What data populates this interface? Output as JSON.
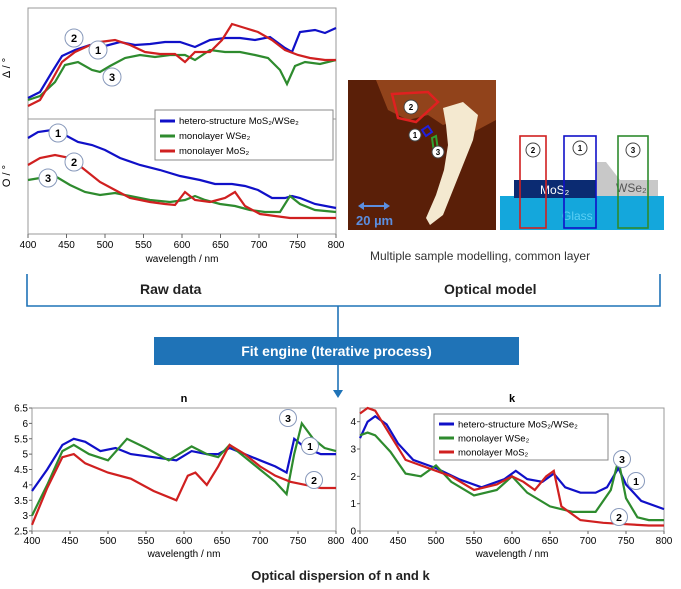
{
  "raw_data_panel": {
    "y_label_top": "Δ / °",
    "y_label_bottom": "Ο / °",
    "x_label": "wavelength / nm",
    "x_ticks": [
      "400",
      "450",
      "500",
      "550",
      "600",
      "650",
      "700",
      "750",
      "800"
    ],
    "legend": [
      {
        "name": "hetero-structure MoS₂/WSe₂",
        "color": "#1010c8"
      },
      {
        "name": "monolayer WSe₂",
        "color": "#2e8b2e"
      },
      {
        "name": "monolayer MoS₂",
        "color": "#d02020"
      }
    ],
    "markers_top": [
      "2",
      "1",
      "3"
    ],
    "markers_bottom": [
      "1",
      "2",
      "3"
    ]
  },
  "microscope": {
    "scale_label": "20 µm",
    "markers": [
      "2",
      "1",
      "3"
    ]
  },
  "model_diagram": {
    "mos2_label": "MoS₂",
    "wse2_label": "WSe₂",
    "glass_label": "Glass",
    "markers": [
      "2",
      "1",
      "3"
    ]
  },
  "captions": {
    "model_caption": "Multiple sample modelling, common layer",
    "raw_data": "Raw data",
    "optical_model": "Optical model",
    "fit_engine": "Fit engine (Iterative process)",
    "bottom_caption": "Optical dispersion of n and k"
  },
  "chart_data": [
    {
      "type": "line",
      "title": "n",
      "xlabel": "wavelength / nm",
      "ylabel": "",
      "xlim": [
        400,
        800
      ],
      "ylim": [
        2.5,
        6.5
      ],
      "x_ticks": [
        400,
        450,
        500,
        550,
        600,
        650,
        700,
        750,
        800
      ],
      "y_ticks": [
        2.5,
        3.0,
        3.5,
        4.0,
        4.5,
        5.0,
        5.5,
        6.0,
        6.5
      ],
      "series": [
        {
          "name": "hetero-structure MoS₂/WSe₂",
          "color": "#1010c8",
          "x": [
            400,
            420,
            440,
            455,
            470,
            490,
            510,
            530,
            560,
            590,
            610,
            630,
            645,
            660,
            680,
            700,
            720,
            735,
            745,
            760,
            780,
            800
          ],
          "y": [
            3.8,
            4.5,
            5.3,
            5.5,
            5.4,
            5.1,
            5.2,
            5.0,
            4.9,
            4.8,
            5.1,
            5.0,
            5.0,
            5.2,
            5.0,
            4.8,
            4.6,
            4.4,
            5.5,
            5.2,
            5.0,
            5.0
          ]
        },
        {
          "name": "monolayer WSe₂",
          "color": "#2e8b2e",
          "x": [
            400,
            420,
            440,
            455,
            475,
            500,
            525,
            550,
            580,
            610,
            630,
            645,
            660,
            680,
            700,
            720,
            735,
            745,
            755,
            770,
            785,
            800
          ],
          "y": [
            3.0,
            4.0,
            5.1,
            5.3,
            5.0,
            4.8,
            5.5,
            5.2,
            4.8,
            5.25,
            5.0,
            4.9,
            5.3,
            4.9,
            4.5,
            4.1,
            3.7,
            5.0,
            6.0,
            5.5,
            5.2,
            5.1
          ]
        },
        {
          "name": "monolayer MoS₂",
          "color": "#d02020",
          "x": [
            400,
            420,
            440,
            455,
            470,
            500,
            530,
            560,
            590,
            605,
            615,
            630,
            645,
            660,
            680,
            700,
            720,
            740,
            760,
            780,
            800
          ],
          "y": [
            2.7,
            3.9,
            4.9,
            5.0,
            4.7,
            4.4,
            4.2,
            3.8,
            3.5,
            4.3,
            4.4,
            4.0,
            4.6,
            5.3,
            5.0,
            4.6,
            4.3,
            4.1,
            4.0,
            3.9,
            3.9
          ]
        }
      ],
      "markers": [
        "3",
        "1",
        "2"
      ]
    },
    {
      "type": "line",
      "title": "k",
      "xlabel": "wavelength / nm",
      "ylabel": "",
      "xlim": [
        400,
        800
      ],
      "ylim": [
        0,
        4.5
      ],
      "x_ticks": [
        400,
        450,
        500,
        550,
        600,
        650,
        700,
        750,
        800
      ],
      "y_ticks": [
        0,
        1,
        2,
        3,
        4
      ],
      "series": [
        {
          "name": "hetero-structure MoS₂/WSe₂",
          "color": "#1010c8",
          "x": [
            400,
            410,
            420,
            435,
            450,
            470,
            500,
            530,
            560,
            590,
            605,
            620,
            640,
            655,
            670,
            690,
            710,
            725,
            740,
            750,
            770,
            800
          ],
          "y": [
            3.4,
            4.0,
            4.2,
            3.9,
            3.2,
            2.6,
            2.3,
            1.9,
            1.6,
            1.9,
            2.2,
            1.9,
            1.8,
            2.1,
            1.6,
            1.4,
            1.4,
            1.6,
            2.3,
            1.7,
            1.1,
            0.8
          ]
        },
        {
          "name": "monolayer WSe₂",
          "color": "#2e8b2e",
          "x": [
            400,
            410,
            420,
            440,
            460,
            480,
            500,
            520,
            550,
            580,
            600,
            620,
            650,
            680,
            710,
            730,
            740,
            750,
            765,
            780,
            800
          ],
          "y": [
            3.5,
            3.6,
            3.5,
            2.9,
            2.1,
            2.0,
            2.4,
            1.8,
            1.3,
            1.5,
            2.0,
            1.4,
            0.9,
            0.7,
            0.7,
            1.5,
            2.6,
            1.2,
            0.5,
            0.4,
            0.4
          ]
        },
        {
          "name": "monolayer MoS₂",
          "color": "#d02020",
          "x": [
            400,
            410,
            420,
            440,
            460,
            490,
            520,
            550,
            580,
            600,
            615,
            630,
            645,
            655,
            665,
            690,
            720,
            750,
            780,
            800
          ],
          "y": [
            4.3,
            4.5,
            4.4,
            3.5,
            2.6,
            2.3,
            2.0,
            1.5,
            1.7,
            2.0,
            1.8,
            1.5,
            2.0,
            2.2,
            0.9,
            0.4,
            0.3,
            0.25,
            0.2,
            0.2
          ]
        }
      ],
      "markers": [
        "3",
        "1",
        "2"
      ]
    }
  ]
}
